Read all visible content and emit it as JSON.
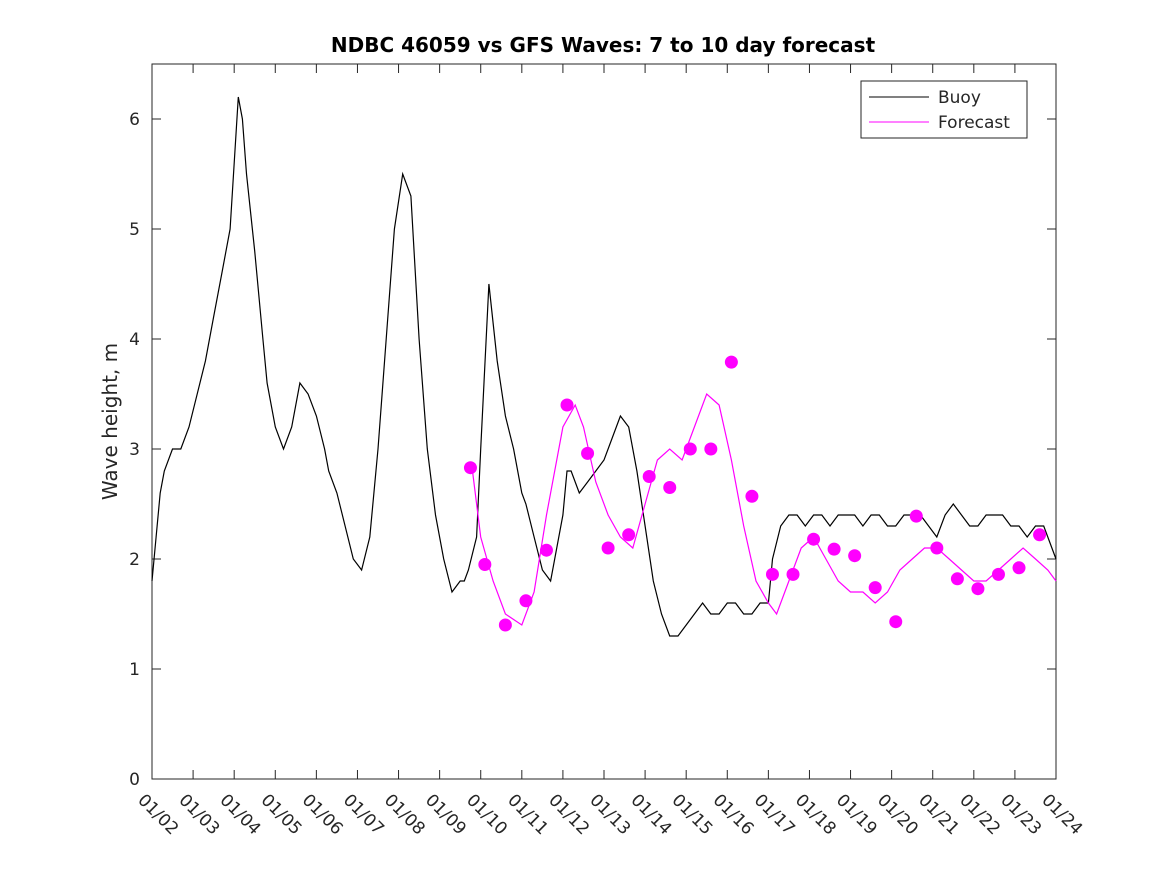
{
  "chart_data": {
    "type": "line",
    "title": "NDBC 46059 vs GFS Waves: 7 to 10 day forecast",
    "xlabel": "",
    "ylabel": "Wave height, m",
    "xlim": [
      0,
      22
    ],
    "ylim": [
      0,
      6.5
    ],
    "yticks": [
      0,
      1,
      2,
      3,
      4,
      5,
      6
    ],
    "xtick_labels": [
      "01/02",
      "01/03",
      "01/04",
      "01/05",
      "01/06",
      "01/07",
      "01/08",
      "01/09",
      "01/10",
      "01/11",
      "01/12",
      "01/13",
      "01/14",
      "01/15",
      "01/16",
      "01/17",
      "01/18",
      "01/19",
      "01/20",
      "01/21",
      "01/22",
      "01/23",
      "01/24"
    ],
    "grid": false,
    "legend": {
      "position": "top-right",
      "entries": [
        "Buoy",
        "Forecast"
      ]
    },
    "colors": {
      "buoy": "#000000",
      "forecast": "#ff00ff"
    },
    "series": [
      {
        "name": "Buoy",
        "x": [
          0,
          0.1,
          0.2,
          0.3,
          0.5,
          0.7,
          0.9,
          1.1,
          1.3,
          1.5,
          1.7,
          1.9,
          2.0,
          2.1,
          2.2,
          2.3,
          2.5,
          2.7,
          2.8,
          3.0,
          3.2,
          3.4,
          3.6,
          3.8,
          4.0,
          4.2,
          4.3,
          4.5,
          4.7,
          4.9,
          5.1,
          5.3,
          5.5,
          5.7,
          5.9,
          6.1,
          6.3,
          6.5,
          6.7,
          6.9,
          7.1,
          7.3,
          7.5,
          7.6,
          7.7,
          7.9,
          8.0,
          8.2,
          8.4,
          8.6,
          8.8,
          9.0,
          9.1,
          9.3,
          9.5,
          9.7,
          9.8,
          10.0,
          10.1,
          10.2,
          10.4,
          10.6,
          10.8,
          11.0,
          11.2,
          11.4,
          11.6,
          11.8,
          12.0,
          12.2,
          12.4,
          12.6,
          12.8,
          13.0,
          13.2,
          13.4,
          13.6,
          13.8,
          14.0,
          14.2,
          14.4,
          14.6,
          14.8,
          15.0,
          15.1,
          15.3,
          15.5,
          15.7,
          15.9,
          16.1,
          16.3,
          16.5,
          16.7,
          16.9,
          17.1,
          17.3,
          17.5,
          17.7,
          17.9,
          18.1,
          18.3,
          18.5,
          18.7,
          18.9,
          19.1,
          19.3,
          19.5,
          19.7,
          19.9,
          20.1,
          20.3,
          20.5,
          20.7,
          20.9,
          21.1,
          21.3,
          21.5,
          21.7,
          21.9,
          22.0
        ],
        "y": [
          1.8,
          2.2,
          2.6,
          2.8,
          3.0,
          3.0,
          3.2,
          3.5,
          3.8,
          4.2,
          4.6,
          5.0,
          5.6,
          6.2,
          6.0,
          5.5,
          4.8,
          4.0,
          3.6,
          3.2,
          3.0,
          3.2,
          3.6,
          3.5,
          3.3,
          3.0,
          2.8,
          2.6,
          2.3,
          2.0,
          1.9,
          2.2,
          3.0,
          4.0,
          5.0,
          5.5,
          5.3,
          4.0,
          3.0,
          2.4,
          2.0,
          1.7,
          1.8,
          1.8,
          1.9,
          2.2,
          3.0,
          4.5,
          3.8,
          3.3,
          3.0,
          2.6,
          2.5,
          2.2,
          1.9,
          1.8,
          2.0,
          2.4,
          2.8,
          2.8,
          2.6,
          2.7,
          2.8,
          2.9,
          3.1,
          3.3,
          3.2,
          2.8,
          2.3,
          1.8,
          1.5,
          1.3,
          1.3,
          1.4,
          1.5,
          1.6,
          1.5,
          1.5,
          1.6,
          1.6,
          1.5,
          1.5,
          1.6,
          1.6,
          2.0,
          2.3,
          2.4,
          2.4,
          2.3,
          2.4,
          2.4,
          2.3,
          2.4,
          2.4,
          2.4,
          2.3,
          2.4,
          2.4,
          2.3,
          2.3,
          2.4,
          2.4,
          2.4,
          2.3,
          2.2,
          2.4,
          2.5,
          2.4,
          2.3,
          2.3,
          2.4,
          2.4,
          2.4,
          2.3,
          2.3,
          2.2,
          2.3,
          2.3,
          2.1,
          2.0
        ],
        "markers": false
      },
      {
        "name": "Forecast",
        "x": [
          7.8,
          8.0,
          8.3,
          8.6,
          9.0,
          9.3,
          9.6,
          10.0,
          10.3,
          10.5,
          10.8,
          11.1,
          11.4,
          11.7,
          12.0,
          12.3,
          12.6,
          12.9,
          13.2,
          13.5,
          13.8,
          14.1,
          14.4,
          14.7,
          15.0,
          15.2,
          15.5,
          15.8,
          16.1,
          16.4,
          16.7,
          17.0,
          17.3,
          17.6,
          17.9,
          18.2,
          18.5,
          18.8,
          19.1,
          19.4,
          19.7,
          20.0,
          20.3,
          20.6,
          20.9,
          21.2,
          21.5,
          21.8,
          22.0
        ],
        "y": [
          2.8,
          2.2,
          1.8,
          1.5,
          1.4,
          1.7,
          2.4,
          3.2,
          3.4,
          3.2,
          2.7,
          2.4,
          2.2,
          2.1,
          2.5,
          2.9,
          3.0,
          2.9,
          3.2,
          3.5,
          3.4,
          2.9,
          2.3,
          1.8,
          1.6,
          1.5,
          1.8,
          2.1,
          2.2,
          2.0,
          1.8,
          1.7,
          1.7,
          1.6,
          1.7,
          1.9,
          2.0,
          2.1,
          2.1,
          2.0,
          1.9,
          1.8,
          1.8,
          1.9,
          2.0,
          2.1,
          2.0,
          1.9,
          1.8
        ],
        "markers": false
      },
      {
        "name": "Forecast markers",
        "x": [
          7.75,
          8.1,
          8.6,
          9.1,
          9.6,
          10.1,
          10.6,
          11.1,
          11.6,
          12.1,
          12.6,
          13.1,
          13.6,
          14.1,
          14.6,
          15.1,
          15.6,
          16.1,
          16.6,
          17.1,
          17.6,
          18.1,
          18.6,
          19.1,
          19.6,
          20.1,
          20.6,
          21.1,
          21.6
        ],
        "y": [
          2.83,
          1.95,
          1.4,
          1.62,
          2.08,
          3.4,
          2.96,
          2.1,
          2.22,
          2.75,
          2.65,
          3.0,
          3.0,
          3.79,
          2.57,
          1.86,
          1.86,
          2.18,
          2.09,
          2.03,
          1.74,
          1.43,
          2.39,
          2.1,
          1.82,
          1.73,
          1.86,
          1.92,
          2.22
        ],
        "markers": true
      }
    ]
  }
}
